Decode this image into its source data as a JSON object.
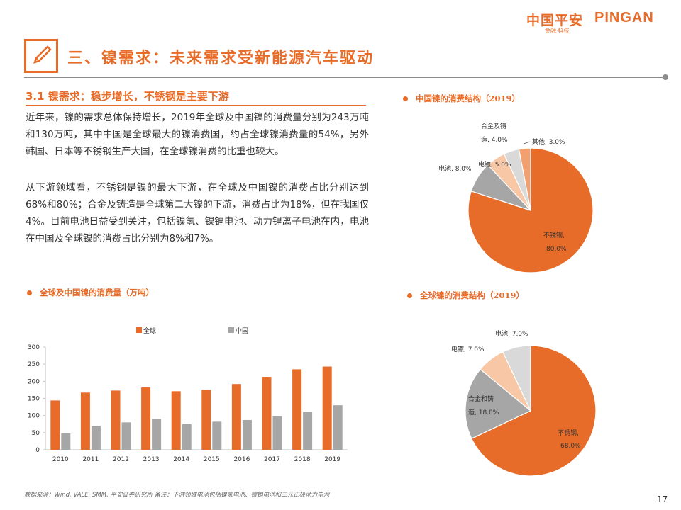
{
  "brand": {
    "name_cn": "中国平安",
    "name_en": "PINGAN",
    "sub": "金融·科技"
  },
  "page_title": "三、镍需求：未来需求受新能源汽车驱动",
  "section": {
    "heading": "3.1 镍需求：稳步增长，不锈钢是主要下游",
    "para1": "近年来，镍的需求总体保持增长，2019年全球及中国镍的消费量分别为243万吨和130万吨，其中中国是全球最大的镍消费国，约占全球镍消费量的54%，另外韩国、日本等不锈钢生产大国，在全球镍消费的比重也较大。",
    "para2": "从下游领域看，不锈钢是镍的最大下游，在全球及中国镍的消费占比分别达到68%和80%；合金及铸造是全球第二大镍的下游，消费占比为18%，但在我国仅4%。目前电池日益受到关注，包括镍氢、镍镉电池、动力锂离子电池在内，电池在中国及全球镍的消费占比分别为8%和7%。"
  },
  "colors": {
    "accent": "#e86c29",
    "gray": "#a6a6a6",
    "light_orange": "#f8c7a5",
    "light_gray": "#d9d9d9"
  },
  "chart_data": [
    {
      "type": "bar",
      "title": "全球及中国镍的消费量（万吨）",
      "categories": [
        "2010",
        "2011",
        "2012",
        "2013",
        "2014",
        "2015",
        "2016",
        "2017",
        "2018",
        "2019"
      ],
      "series": [
        {
          "name": "全球",
          "color": "#e86c29",
          "values": [
            144,
            167,
            173,
            182,
            171,
            175,
            192,
            213,
            235,
            243
          ]
        },
        {
          "name": "中国",
          "color": "#a6a6a6",
          "values": [
            48,
            70,
            80,
            90,
            75,
            82,
            87,
            98,
            110,
            130
          ]
        }
      ],
      "yticks": [
        "0",
        "50",
        "100",
        "150",
        "200",
        "250",
        "300"
      ],
      "ylim": [
        0,
        300
      ],
      "legend": "top"
    },
    {
      "type": "pie",
      "title": "中国镍的消费结构（2019）",
      "slices": [
        {
          "label": "不锈钢, 80.0%",
          "value": 80,
          "color": "#e86c29"
        },
        {
          "label": "电池, 8.0%",
          "value": 8,
          "color": "#a6a6a6"
        },
        {
          "label": "电镀, 5.0%",
          "value": 5,
          "color": "#f8c7a5"
        },
        {
          "label": "合金及铸造, 4.0%",
          "value": 4,
          "color": "#d9d9d9"
        },
        {
          "label": "其他, 3.0%",
          "value": 3,
          "color": "#f2a070"
        }
      ]
    },
    {
      "type": "pie",
      "title": "全球镍的消费结构（2019）",
      "slices": [
        {
          "label": "不锈钢, 68.0%",
          "value": 68,
          "color": "#e86c29"
        },
        {
          "label": "合金和铸造, 18.0%",
          "value": 18,
          "color": "#a6a6a6"
        },
        {
          "label": "电镀, 7.0%",
          "value": 7,
          "color": "#f8c7a5"
        },
        {
          "label": "电池, 7.0%",
          "value": 7,
          "color": "#d9d9d9"
        }
      ]
    }
  ],
  "footnote": "数据来源：Wind, VALE, SMM, 平安证券研究所  备注：下游领域电池包括镍氢电池、镍镉电池和三元正极动力电池",
  "page_number": "17"
}
